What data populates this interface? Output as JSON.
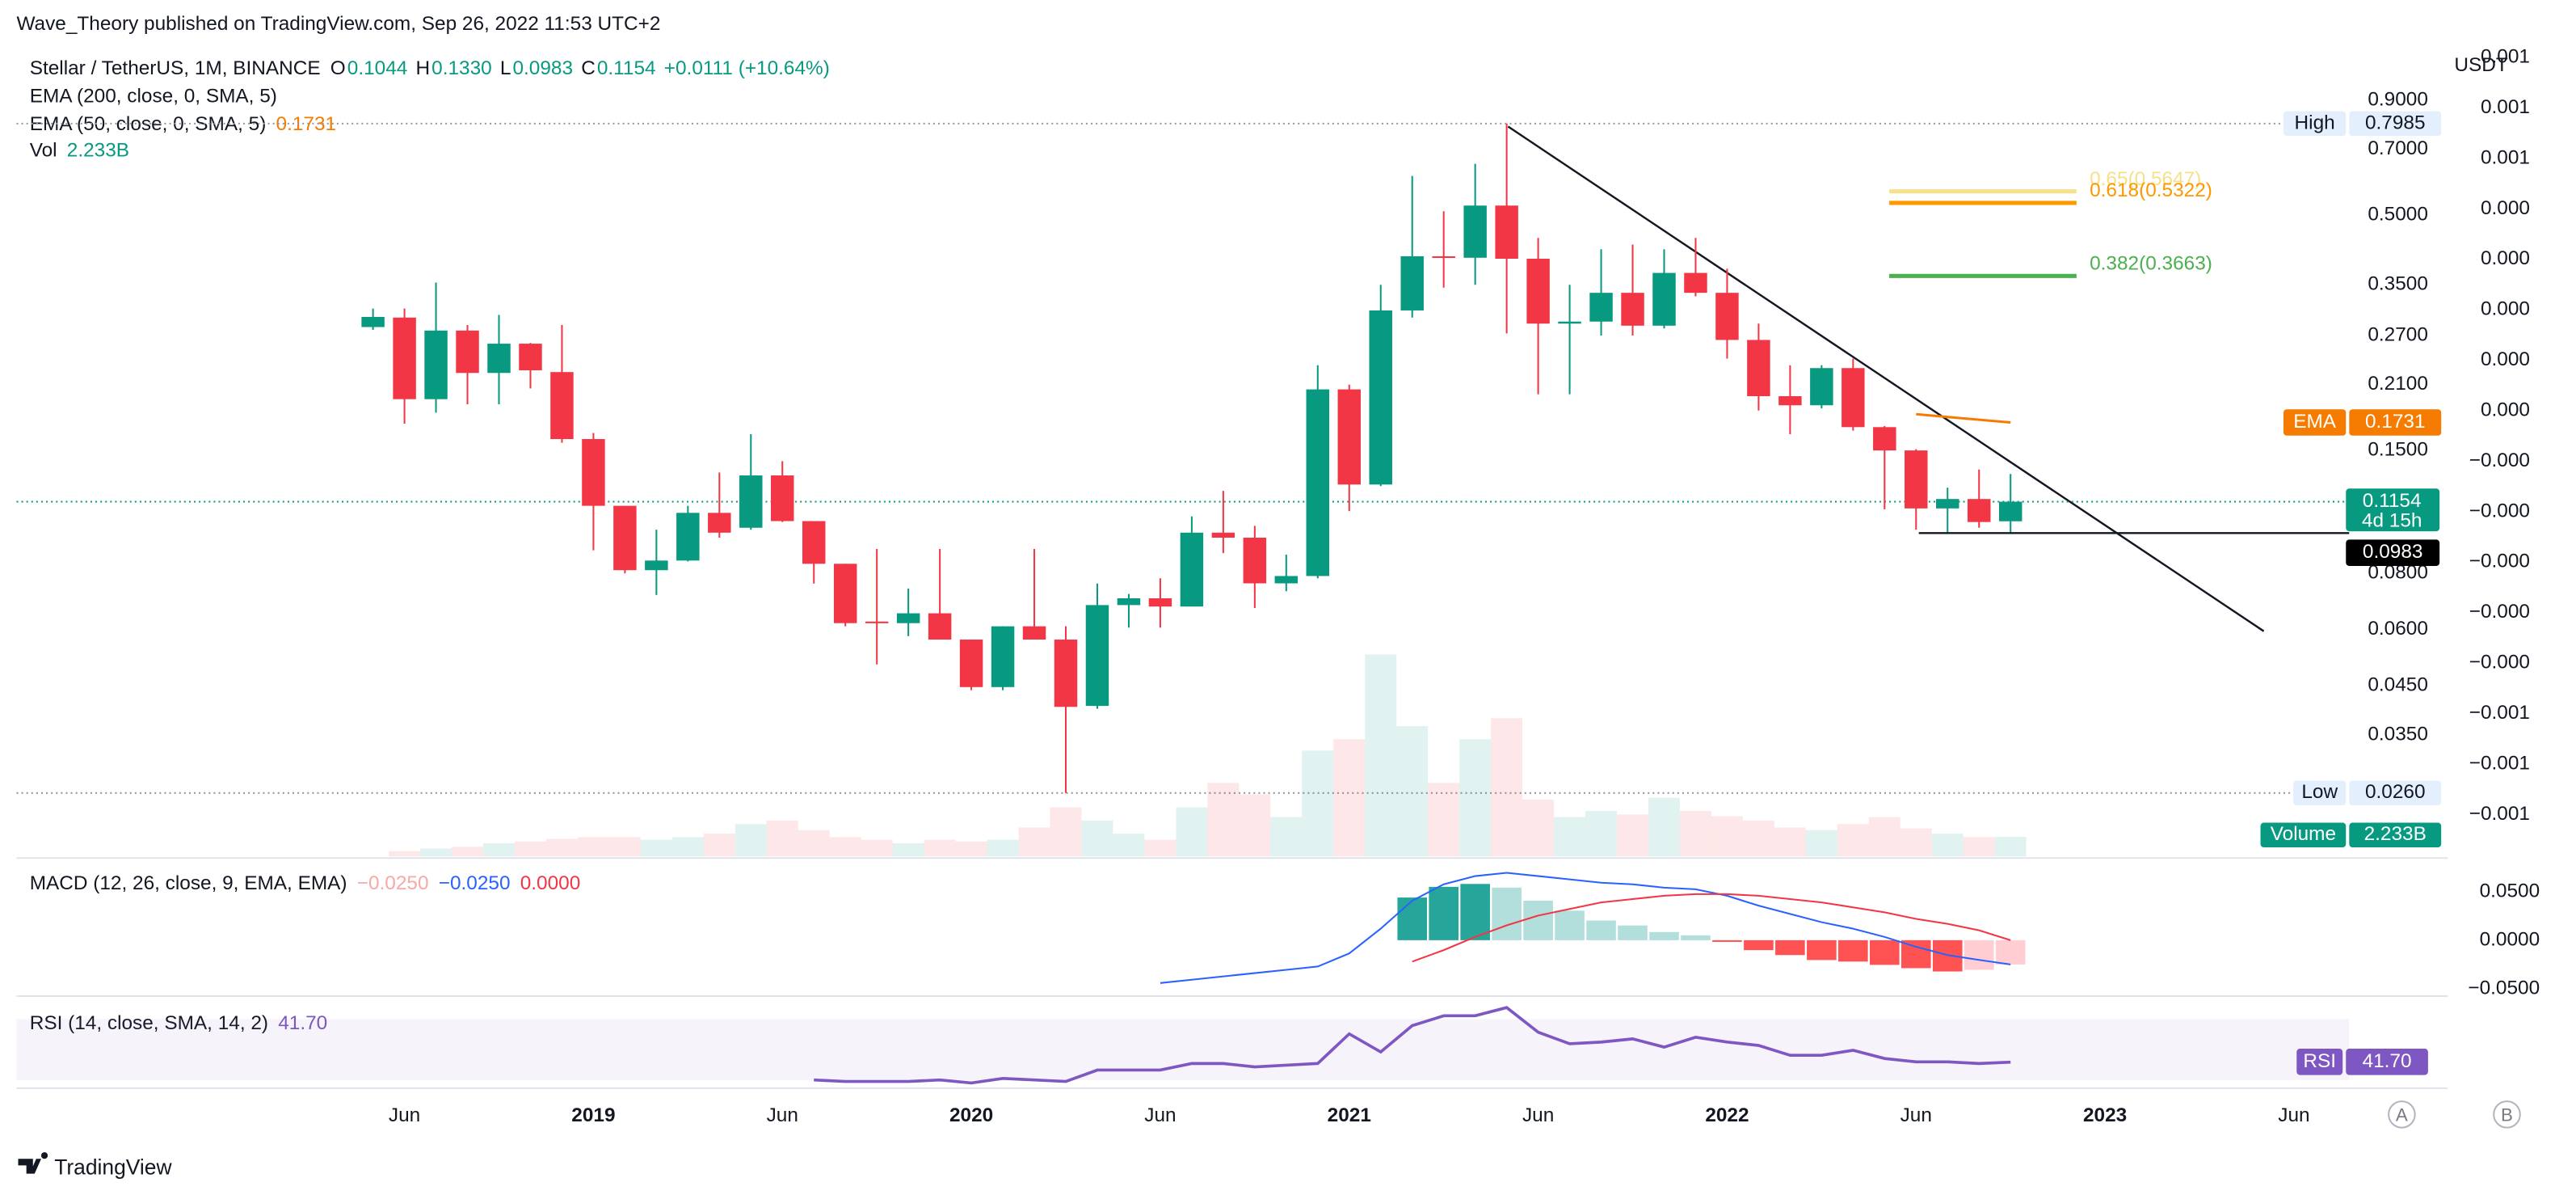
{
  "header": {
    "publisher": "Wave_Theory published on TradingView.com, Sep 26, 2022 11:53 UTC+2"
  },
  "chart_data": {
    "type": "candlestick",
    "title": "Stellar / TetherUS, 1M, BINANCE",
    "ohlc_keys": [
      "O",
      "H",
      "L",
      "C"
    ],
    "last_labels": {
      "open": "0.1044",
      "high": "0.1330",
      "low": "0.0983",
      "close": "0.1154"
    },
    "change": "+0.0111 (+10.64%)",
    "countdown": "4d 15h",
    "axis_unit": "USDT",
    "log_scale": true,
    "colors": {
      "up": "#089981",
      "down": "#f23645"
    },
    "open": [
      0.282,
      0.296,
      0.195,
      0.277,
      0.223,
      0.259,
      0.224,
      0.159,
      0.113,
      0.0813,
      0.0854,
      0.109,
      0.101,
      0.132,
      0.1045,
      0.084,
      0.0625,
      0.062,
      0.0652,
      0.057,
      0.0447,
      0.061,
      0.057,
      0.0406,
      0.068,
      0.0704,
      0.0675,
      0.0985,
      0.096,
      0.076,
      0.0789,
      0.205,
      0.126,
      0.307,
      0.405,
      0.402,
      0.525,
      0.4,
      0.287,
      0.29,
      0.336,
      0.284,
      0.372,
      0.336,
      0.264,
      0.198,
      0.189,
      0.2286,
      0.169,
      0.15,
      0.1115,
      0.117,
      0.1044
    ],
    "high": [
      0.31,
      0.31,
      0.354,
      0.285,
      0.3,
      0.26,
      0.285,
      0.164,
      0.113,
      0.1,
      0.113,
      0.134,
      0.163,
      0.142,
      0.1045,
      0.084,
      0.0906,
      0.074,
      0.0906,
      0.057,
      0.061,
      0.0906,
      0.061,
      0.0759,
      0.072,
      0.078,
      0.107,
      0.122,
      0.102,
      0.088,
      0.232,
      0.21,
      0.35,
      0.611,
      0.51,
      0.65,
      0.7985,
      0.445,
      0.35,
      0.42,
      0.43,
      0.42,
      0.445,
      0.38,
      0.287,
      0.232,
      0.232,
      0.24,
      0.17,
      0.151,
      0.124,
      0.136,
      0.133
    ],
    "low": [
      0.278,
      0.172,
      0.182,
      0.19,
      0.19,
      0.206,
      0.156,
      0.09,
      0.08,
      0.0716,
      0.085,
      0.096,
      0.1,
      0.104,
      0.0759,
      0.061,
      0.0502,
      0.058,
      0.057,
      0.044,
      0.044,
      0.057,
      0.026,
      0.04,
      0.0606,
      0.0606,
      0.0675,
      0.0887,
      0.067,
      0.073,
      0.078,
      0.11,
      0.125,
      0.296,
      0.345,
      0.35,
      0.273,
      0.2,
      0.2,
      0.27,
      0.27,
      0.28,
      0.33,
      0.24,
      0.184,
      0.163,
      0.186,
      0.166,
      0.111,
      0.1,
      0.0985,
      0.101,
      0.0983
    ],
    "close": [
      0.297,
      0.195,
      0.277,
      0.223,
      0.259,
      0.226,
      0.159,
      0.113,
      0.0813,
      0.0854,
      0.109,
      0.0985,
      0.132,
      0.1045,
      0.084,
      0.062,
      0.062,
      0.0652,
      0.057,
      0.0447,
      0.061,
      0.057,
      0.0404,
      0.068,
      0.0704,
      0.0675,
      0.0985,
      0.096,
      0.076,
      0.0789,
      0.205,
      0.126,
      0.307,
      0.405,
      0.402,
      0.525,
      0.4,
      0.287,
      0.29,
      0.336,
      0.284,
      0.372,
      0.336,
      0.264,
      0.198,
      0.189,
      0.2286,
      0.169,
      0.15,
      0.1115,
      0.117,
      0.104,
      0.1154
    ],
    "ylim": [
      0.0188,
      1.249
    ],
    "yticks": [
      {
        "value": 0.9,
        "label": "0.9000"
      },
      {
        "value": 0.7,
        "label": "0.7000"
      },
      {
        "value": 0.5,
        "label": "0.5000"
      },
      {
        "value": 0.35,
        "label": "0.3500"
      },
      {
        "value": 0.27,
        "label": "0.2700"
      },
      {
        "value": 0.21,
        "label": "0.2100"
      },
      {
        "value": 0.15,
        "label": "0.1500"
      },
      {
        "value": 0.08,
        "label": "0.0800"
      },
      {
        "value": 0.06,
        "label": "0.0600"
      },
      {
        "value": 0.045,
        "label": "0.0450"
      },
      {
        "value": 0.035,
        "label": "0.0350"
      }
    ],
    "y2_labels": [
      "0.001",
      "0.001",
      "0.001",
      "0.000",
      "0.000",
      "0.000",
      "0.000",
      "0.000",
      "−0.000",
      "−0.000",
      "−0.000",
      "−0.000",
      "−0.000",
      "−0.001",
      "−0.001",
      "−0.001"
    ],
    "high_label": {
      "text": "High",
      "value": "0.7985"
    },
    "low_label": {
      "text": "Low",
      "value": "0.0260"
    },
    "ema200_legend": "EMA (200, close, 0, SMA, 5)",
    "ema50": {
      "legend": "EMA (50, close, 0, SMA, 5)",
      "name": "EMA",
      "color": "#f57c00",
      "value_label": "0.1731",
      "values": [
        null,
        null,
        null,
        null,
        null,
        null,
        null,
        null,
        null,
        null,
        null,
        null,
        null,
        null,
        null,
        null,
        null,
        null,
        null,
        null,
        null,
        null,
        null,
        null,
        null,
        null,
        null,
        null,
        null,
        null,
        null,
        null,
        null,
        null,
        null,
        null,
        null,
        null,
        null,
        null,
        null,
        null,
        null,
        null,
        null,
        null,
        null,
        null,
        null,
        0.1806,
        0.178,
        0.1755,
        0.1731
      ]
    },
    "fib": [
      {
        "label": "0.65(0.5647)",
        "value": 0.5647,
        "color": "#f7e08a"
      },
      {
        "label": "0.618(0.5322)",
        "value": 0.5322,
        "color": "#ff9800"
      },
      {
        "label": "0.382(0.3663)",
        "value": 0.3663,
        "color": "#4caf50"
      }
    ],
    "volume": {
      "legend": "Vol",
      "axis_label": "Volume",
      "value_label": "2.233B",
      "ylim": [
        0,
        25
      ],
      "values": [
        0,
        0.6,
        0.9,
        1.1,
        1.5,
        1.7,
        2.0,
        2.2,
        2.2,
        1.9,
        2.2,
        2.6,
        3.7,
        4.1,
        3.0,
        2.2,
        1.9,
        1.5,
        1.9,
        1.7,
        1.9,
        3.3,
        5.6,
        4.1,
        2.6,
        1.9,
        5.6,
        8.4,
        7.1,
        4.5,
        12.1,
        13.4,
        23.1,
        14.9,
        8.4,
        13.4,
        15.8,
        6.5,
        4.5,
        5.2,
        4.8,
        6.7,
        5.2,
        4.6,
        4.1,
        3.3,
        3.0,
        3.7,
        4.5,
        3.2,
        2.6,
        2.2,
        2.233
      ]
    },
    "x_labels": [
      "Jun",
      "2019",
      "Jun",
      "2020",
      "Jun",
      "2021",
      "Jun",
      "2022",
      "Jun",
      "2023",
      "Jun"
    ]
  },
  "macd": {
    "legend": "MACD (12, 26, close, 9, EMA, EMA)",
    "legend_values": [
      {
        "value": -0.025,
        "label": "−0.0250",
        "color": "#f7a9a7"
      },
      {
        "value": -0.025,
        "label": "−0.0250",
        "color": "#2962ff"
      },
      {
        "value": 0,
        "label": "0.0000",
        "color": "#f23645"
      }
    ],
    "ylim": [
      -0.0576,
      0.0847
    ],
    "yticks": [
      {
        "value": 0.05,
        "label": "0.0500"
      },
      {
        "value": 0,
        "label": "0.0000"
      },
      {
        "value": -0.05,
        "label": "−0.0500"
      }
    ],
    "colors": {
      "macd": "#2962ff",
      "signal": "#f23645",
      "up_strong": "#26a69a",
      "up_weak": "#b2dfdb",
      "down_strong": "#ff5252",
      "down_weak": "#ffcdd2"
    },
    "macd": [
      null,
      null,
      null,
      null,
      null,
      null,
      null,
      null,
      null,
      null,
      null,
      null,
      null,
      null,
      null,
      null,
      null,
      null,
      null,
      null,
      null,
      null,
      null,
      null,
      null,
      -0.0441,
      -0.0407,
      -0.0373,
      -0.0339,
      -0.0305,
      -0.0271,
      -0.0136,
      0.0119,
      0.0407,
      0.0576,
      0.0661,
      0.0695,
      0.0661,
      0.0627,
      0.0593,
      0.0576,
      0.0542,
      0.0525,
      0.0458,
      0.0356,
      0.0271,
      0.0186,
      0.0119,
      0.0034,
      -0.0068,
      -0.0153,
      -0.0203,
      -0.025
    ],
    "signal": [
      null,
      null,
      null,
      null,
      null,
      null,
      null,
      null,
      null,
      null,
      null,
      null,
      null,
      null,
      null,
      null,
      null,
      null,
      null,
      null,
      null,
      null,
      null,
      null,
      null,
      null,
      null,
      null,
      null,
      null,
      null,
      null,
      null,
      -0.022,
      -0.0102,
      0.0034,
      0.0153,
      0.0254,
      0.0322,
      0.039,
      0.0424,
      0.0458,
      0.0475,
      0.0475,
      0.0458,
      0.0424,
      0.039,
      0.0339,
      0.0288,
      0.022,
      0.0169,
      0.0102,
      0
    ],
    "histogram": [
      null,
      null,
      null,
      null,
      null,
      null,
      null,
      null,
      null,
      null,
      null,
      null,
      null,
      null,
      null,
      null,
      null,
      null,
      null,
      null,
      null,
      null,
      null,
      null,
      null,
      null,
      null,
      null,
      null,
      null,
      null,
      null,
      null,
      0.044,
      0.055,
      0.058,
      0.0542,
      0.0407,
      0.0305,
      0.0203,
      0.0152,
      0.0084,
      0.005,
      -0.0017,
      -0.0102,
      -0.0153,
      -0.0204,
      -0.022,
      -0.0254,
      -0.0288,
      -0.0322,
      -0.0305,
      -0.025
    ]
  },
  "rsi": {
    "legend": "RSI (14, close, SMA, 14, 2)",
    "name": "RSI",
    "value_label": "41.70",
    "color": "#7e57c2",
    "ylim": [
      26.76,
      84.05
    ],
    "band": [
      30,
      70
    ],
    "values": [
      null,
      null,
      null,
      null,
      null,
      null,
      null,
      null,
      null,
      null,
      null,
      null,
      null,
      null,
      30,
      29,
      29,
      29,
      30,
      28,
      31,
      30,
      29,
      36.5,
      36.5,
      36.5,
      40.8,
      40.8,
      38.6,
      39.7,
      40.8,
      60.3,
      48.4,
      65.7,
      72.2,
      72.2,
      77.6,
      61.4,
      53.8,
      54.9,
      57,
      51.6,
      58.1,
      54.9,
      52.7,
      46.2,
      46.2,
      49.5,
      44.1,
      41.9,
      41.9,
      40.8,
      41.7
    ]
  },
  "footer": {
    "brand": "TradingView"
  },
  "scale_buttons": [
    "A",
    "B"
  ]
}
